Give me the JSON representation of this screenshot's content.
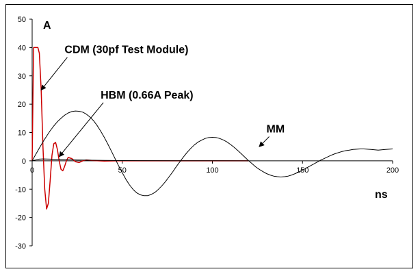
{
  "chart_data": {
    "type": "line",
    "title": "",
    "xlabel": "ns",
    "ylabel": "A",
    "xlim": [
      0,
      200
    ],
    "ylim": [
      -30,
      50
    ],
    "x_ticks": [
      0,
      50,
      100,
      150,
      200
    ],
    "y_ticks": [
      50,
      40,
      30,
      20,
      10,
      0,
      -10,
      -20,
      -30
    ],
    "grid": false,
    "legend": "none",
    "series": [
      {
        "name": "CDM (30pf Test Module)",
        "color": "#cc0000",
        "x": [
          0,
          0.8,
          1.6,
          2.5,
          3.2,
          4.0,
          5.0,
          6.0,
          7.0,
          8.0,
          9.0,
          10.0,
          11.0,
          12.0,
          13.0,
          14.0,
          15.0,
          16.0,
          17.0,
          18.0,
          19.0,
          20.0,
          22.0,
          24.0,
          26.0,
          28.0,
          30.0,
          34.0,
          40.0,
          50.0,
          60.0,
          80.0,
          100.0,
          120.0
        ],
        "y": [
          0,
          40,
          40,
          40,
          40,
          38,
          25,
          5,
          -10,
          -17,
          -15,
          -7,
          2,
          6,
          6.5,
          4,
          0,
          -3,
          -3.5,
          -2,
          0,
          1.2,
          0.8,
          -0.3,
          -0.6,
          0,
          0.3,
          0.1,
          -0.1,
          0.05,
          0,
          0,
          0,
          0
        ]
      },
      {
        "name": "HBM (0.66A Peak)",
        "color": "#000000",
        "x": [
          0,
          2,
          4,
          6,
          8,
          10,
          12,
          15,
          18,
          20,
          22,
          25,
          30,
          40,
          50,
          60,
          80,
          100,
          120
        ],
        "y": [
          0,
          0.3,
          0.6,
          0.66,
          0.64,
          0.6,
          0.55,
          0.5,
          0.45,
          0.4,
          0.35,
          0.3,
          0.25,
          0.15,
          0.1,
          0.06,
          0.03,
          0.01,
          0
        ]
      },
      {
        "name": "MM",
        "color": "#000000",
        "x": [
          0,
          2,
          4,
          6,
          8,
          10,
          12,
          14,
          16,
          18,
          20,
          22,
          24,
          26,
          28,
          30,
          32,
          34,
          36,
          38,
          40,
          42,
          44,
          46,
          48,
          50,
          52,
          54,
          56,
          58,
          60,
          62,
          64,
          66,
          68,
          70,
          72,
          74,
          76,
          78,
          80,
          82,
          84,
          86,
          88,
          90,
          92,
          94,
          96,
          98,
          100,
          102,
          104,
          106,
          108,
          110,
          112,
          114,
          116,
          118,
          120,
          122,
          124,
          126,
          128,
          130,
          132,
          134,
          136,
          138,
          140,
          142,
          144,
          146,
          148,
          150,
          152,
          154,
          156,
          158,
          160,
          162,
          164,
          166,
          168,
          170,
          172,
          174,
          176,
          178,
          180,
          182,
          184,
          186,
          188,
          190,
          192,
          194,
          196,
          198,
          200
        ],
        "y": [
          0,
          2.3,
          4.5,
          6.7,
          8.7,
          10.6,
          12.3,
          13.8,
          15.0,
          16.1,
          16.9,
          17.4,
          17.6,
          17.5,
          17.2,
          16.5,
          15.5,
          14.2,
          12.5,
          10.5,
          8.3,
          5.9,
          3.4,
          0.8,
          -1.8,
          -4.2,
          -6.5,
          -8.5,
          -10.1,
          -11.3,
          -12.0,
          -12.3,
          -12.3,
          -11.9,
          -11.2,
          -10.1,
          -8.8,
          -7.3,
          -5.6,
          -3.9,
          -2.0,
          -0.3,
          1.4,
          3.0,
          4.4,
          5.6,
          6.6,
          7.3,
          7.9,
          8.2,
          8.3,
          8.2,
          7.9,
          7.4,
          6.7,
          5.8,
          4.8,
          3.7,
          2.5,
          1.3,
          0.1,
          -1.0,
          -2.1,
          -3.0,
          -3.8,
          -4.5,
          -5.0,
          -5.4,
          -5.6,
          -5.7,
          -5.6,
          -5.4,
          -5.0,
          -4.5,
          -3.9,
          -3.3,
          -2.6,
          -1.9,
          -1.2,
          -0.5,
          0.2,
          0.8,
          1.4,
          2.0,
          2.5,
          2.9,
          3.3,
          3.6,
          3.8,
          4.0,
          4.1,
          4.2,
          4.2,
          4.1,
          4.0,
          3.9,
          3.8,
          3.9,
          4.0,
          4.1,
          4.2
        ]
      }
    ],
    "annotations": [
      {
        "text": "CDM (30pf Test Module)",
        "ax": 5,
        "ay": 25,
        "tx": 18,
        "ty": 38
      },
      {
        "text": "HBM (0.66A Peak)",
        "ax": 15,
        "ay": 1.5,
        "tx": 38,
        "ty": 22
      },
      {
        "text": "MM",
        "ax": 126,
        "ay": 5,
        "tx": 130,
        "ty": 10
      }
    ]
  }
}
